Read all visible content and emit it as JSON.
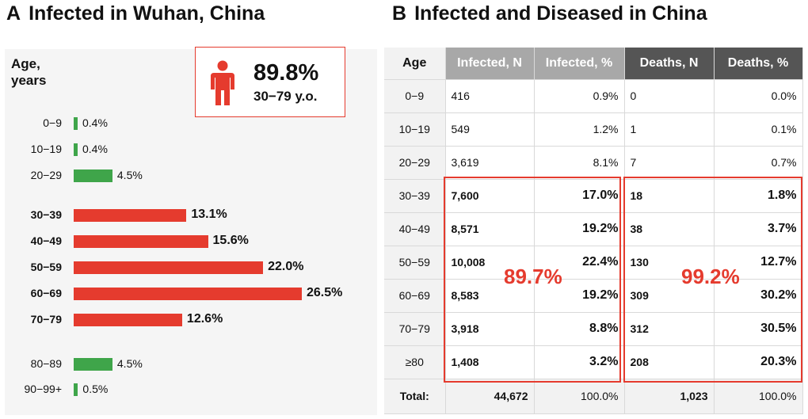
{
  "panel_a": {
    "letter": "A",
    "title": "Infected in Wuhan, China",
    "age_header_line1": "Age,",
    "age_header_line2": "years",
    "callout": {
      "percent": "89.8%",
      "range": "30−79 y.o.",
      "icon": "person-icon"
    },
    "colors": {
      "highlight": "#e53b2e",
      "other": "#3fa54a"
    },
    "chart_data": {
      "type": "bar",
      "orientation": "horizontal",
      "categories": [
        "0−9",
        "10−19",
        "20−29",
        "30−39",
        "40−49",
        "50−59",
        "60−69",
        "70−79",
        "80−89",
        "90−99+"
      ],
      "values": [
        0.4,
        0.4,
        4.5,
        13.1,
        15.6,
        22.0,
        26.5,
        12.6,
        4.5,
        0.5
      ],
      "labels": [
        "0.4%",
        "0.4%",
        "4.5%",
        "13.1%",
        "15.6%",
        "22.0%",
        "26.5%",
        "12.6%",
        "4.5%",
        "0.5%"
      ],
      "highlighted": [
        false,
        false,
        false,
        true,
        true,
        true,
        true,
        true,
        false,
        false
      ],
      "xlim": [
        0,
        26.5
      ]
    }
  },
  "panel_b": {
    "letter": "B",
    "title": "Infected and Diseased in China",
    "headers": [
      "Age",
      "Infected, N",
      "Infected, %",
      "Deaths, N",
      "Deaths, %"
    ],
    "rows": [
      {
        "age": "0−9",
        "inf_n": "416",
        "inf_p": "0.9%",
        "dea_n": "0",
        "dea_p": "0.0%",
        "bold": false
      },
      {
        "age": "10−19",
        "inf_n": "549",
        "inf_p": "1.2%",
        "dea_n": "1",
        "dea_p": "0.1%",
        "bold": false
      },
      {
        "age": "20−29",
        "inf_n": "3,619",
        "inf_p": "8.1%",
        "dea_n": "7",
        "dea_p": "0.7%",
        "bold": false
      },
      {
        "age": "30−39",
        "inf_n": "7,600",
        "inf_p": "17.0%",
        "dea_n": "18",
        "dea_p": "1.8%",
        "bold": true
      },
      {
        "age": "40−49",
        "inf_n": "8,571",
        "inf_p": "19.2%",
        "dea_n": "38",
        "dea_p": "3.7%",
        "bold": true
      },
      {
        "age": "50−59",
        "inf_n": "10,008",
        "inf_p": "22.4%",
        "dea_n": "130",
        "dea_p": "12.7%",
        "bold": true
      },
      {
        "age": "60−69",
        "inf_n": "8,583",
        "inf_p": "19.2%",
        "dea_n": "309",
        "dea_p": "30.2%",
        "bold": true
      },
      {
        "age": "70−79",
        "inf_n": "3,918",
        "inf_p": "8.8%",
        "dea_n": "312",
        "dea_p": "30.5%",
        "bold": true
      },
      {
        "age": "≥80",
        "inf_n": "1,408",
        "inf_p": "3.2%",
        "dea_n": "208",
        "dea_p": "20.3%",
        "bold": true
      }
    ],
    "total": {
      "label": "Total:",
      "inf_n": "44,672",
      "inf_p": "100.0%",
      "dea_n": "1,023",
      "dea_p": "100.0%"
    },
    "highlight_infected": "89.7%",
    "highlight_deaths": "99.2%"
  }
}
